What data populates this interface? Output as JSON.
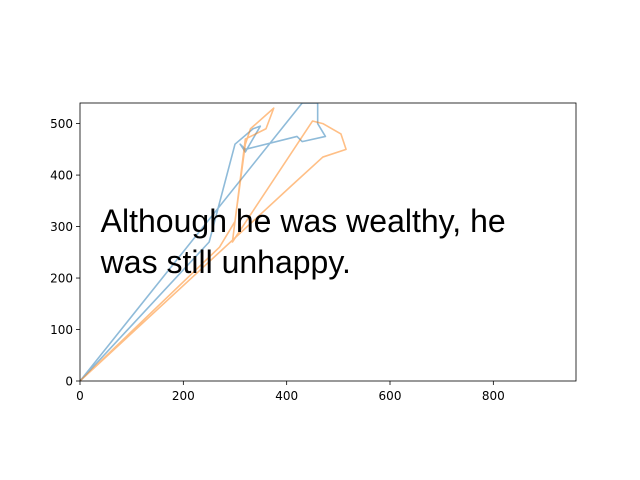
{
  "chart_data": {
    "type": "line",
    "title": "",
    "xlabel": "",
    "ylabel": "",
    "xlim": [
      0,
      960
    ],
    "ylim": [
      0,
      540
    ],
    "grid": false,
    "x_ticks": [
      0,
      200,
      400,
      600,
      800
    ],
    "y_ticks": [
      0,
      100,
      200,
      300,
      400,
      500
    ],
    "series": [
      {
        "color": "#1f77b4",
        "opacity": 0.5,
        "points": [
          [
            0,
            0
          ],
          [
            250,
            270
          ],
          [
            300,
            460
          ],
          [
            335,
            490
          ],
          [
            349,
            495
          ],
          [
            320,
            445
          ],
          [
            310,
            460
          ],
          [
            320,
            450
          ],
          [
            420,
            475
          ],
          [
            430,
            465
          ],
          [
            475,
            475
          ],
          [
            460,
            500
          ],
          [
            460,
            540
          ],
          [
            430,
            540
          ],
          [
            0,
            0
          ]
        ]
      },
      {
        "color": "#ff7f0e",
        "opacity": 0.5,
        "points": [
          [
            0,
            0
          ],
          [
            270,
            260
          ],
          [
            300,
            310
          ],
          [
            320,
            460
          ],
          [
            330,
            490
          ],
          [
            375,
            530
          ],
          [
            360,
            490
          ],
          [
            320,
            470
          ],
          [
            295,
            270
          ],
          [
            450,
            505
          ],
          [
            470,
            500
          ],
          [
            505,
            480
          ],
          [
            515,
            450
          ],
          [
            470,
            435
          ],
          [
            410,
            380
          ],
          [
            0,
            0
          ]
        ]
      }
    ],
    "annotations": [
      {
        "text_lines": [
          "Although he was wealthy, he",
          "was still unhappy."
        ],
        "x": 40,
        "y": 300
      }
    ]
  }
}
